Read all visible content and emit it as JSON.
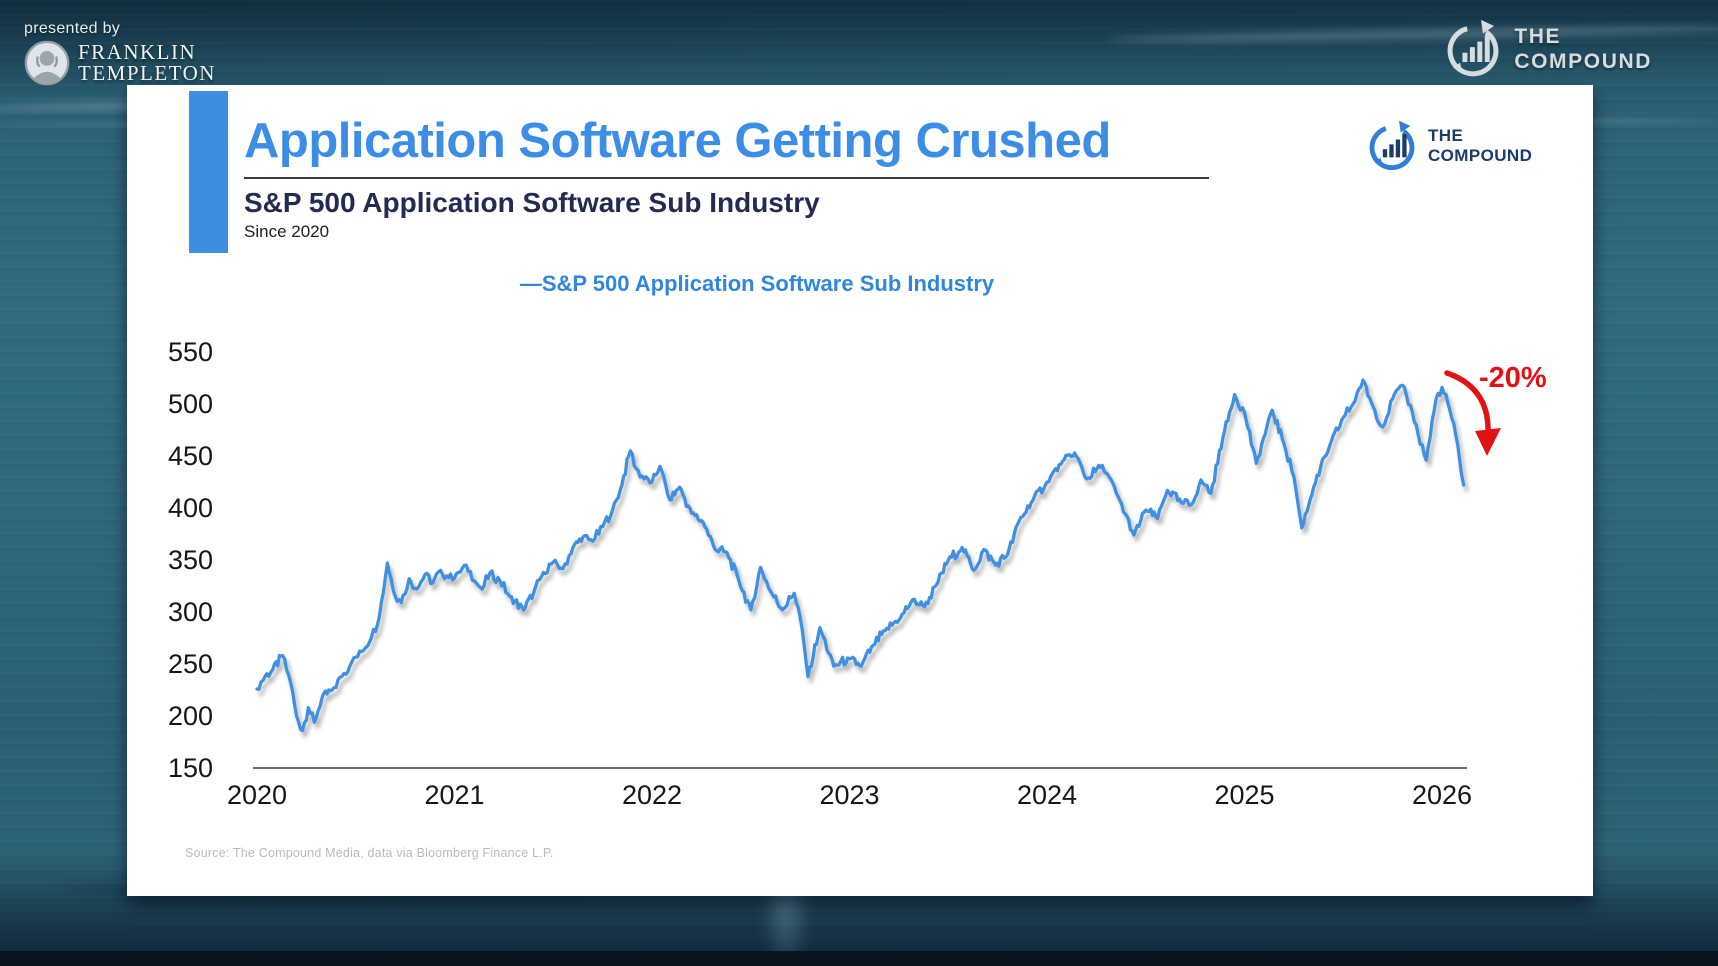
{
  "page": {
    "presented_by": "presented by",
    "franklin_line1": "FRANKLIN",
    "franklin_line2": "TEMPLETON",
    "compound_outer_line1": "THE",
    "compound_outer_line2": "COMPOUND"
  },
  "card": {
    "title": "Application Software Getting Crushed",
    "subtitle": "S&P 500 Application Software Sub Industry",
    "subnote": "Since 2020",
    "logo_line1": "THE",
    "logo_line2": "COMPOUND",
    "legend_marker": "—",
    "legend_label": "S&P 500 Application Software Sub Industry",
    "source": "Source: The Compound Media, data via Bloomberg Finance L.P.",
    "colors": {
      "accent_blue": "#3b8de5",
      "line_blue": "#3f90e2",
      "navy": "#232b52",
      "red": "#e31212",
      "axis_gray": "#6f6f6f",
      "tick_text": "#161616"
    }
  },
  "chart_data": {
    "type": "line",
    "title": "S&P 500 Application Software Sub Industry",
    "xlabel": "",
    "ylabel": "",
    "xlim": [
      2020,
      2026.15
    ],
    "ylim": [
      150,
      575
    ],
    "grid": false,
    "legend_position": "top-center",
    "xticks": [
      2020,
      2021,
      2022,
      2023,
      2024,
      2025,
      2026
    ],
    "yticks": [
      550,
      500,
      450,
      400,
      350,
      300,
      250,
      200,
      150
    ],
    "annotation": {
      "text": "-20%",
      "color": "#e31212"
    },
    "series": [
      {
        "name": "S&P 500 Application Software Sub Industry",
        "color": "#3f90e2",
        "x": [
          2020.0,
          2020.04,
          2020.08,
          2020.13,
          2020.17,
          2020.2,
          2020.23,
          2020.26,
          2020.29,
          2020.33,
          2020.38,
          2020.43,
          2020.48,
          2020.53,
          2020.58,
          2020.62,
          2020.66,
          2020.7,
          2020.73,
          2020.77,
          2020.81,
          2020.85,
          2020.89,
          2020.93,
          2020.97,
          2021.02,
          2021.06,
          2021.1,
          2021.14,
          2021.18,
          2021.23,
          2021.28,
          2021.35,
          2021.4,
          2021.45,
          2021.5,
          2021.55,
          2021.6,
          2021.65,
          2021.7,
          2021.75,
          2021.8,
          2021.84,
          2021.89,
          2021.92,
          2021.96,
          2022.0,
          2022.04,
          2022.09,
          2022.14,
          2022.2,
          2022.26,
          2022.32,
          2022.38,
          2022.44,
          2022.5,
          2022.55,
          2022.6,
          2022.66,
          2022.72,
          2022.75,
          2022.79,
          2022.85,
          2022.92,
          2023.0,
          2023.06,
          2023.12,
          2023.18,
          2023.26,
          2023.32,
          2023.38,
          2023.44,
          2023.5,
          2023.57,
          2023.63,
          2023.68,
          2023.74,
          2023.8,
          2023.86,
          2023.92,
          2024.0,
          2024.07,
          2024.14,
          2024.2,
          2024.28,
          2024.36,
          2024.44,
          2024.5,
          2024.56,
          2024.61,
          2024.68,
          2024.73,
          2024.78,
          2024.83,
          2024.89,
          2024.95,
          2025.0,
          2025.06,
          2025.14,
          2025.2,
          2025.25,
          2025.29,
          2025.35,
          2025.43,
          2025.5,
          2025.55,
          2025.6,
          2025.65,
          2025.7,
          2025.75,
          2025.8,
          2025.85,
          2025.88,
          2025.92,
          2025.97,
          2026.0,
          2026.04,
          2026.07,
          2026.09,
          2026.11
        ],
        "y": [
          226,
          238,
          245,
          258,
          232,
          200,
          186,
          208,
          194,
          218,
          225,
          238,
          252,
          262,
          276,
          296,
          347,
          315,
          309,
          332,
          322,
          336,
          328,
          340,
          333,
          338,
          345,
          330,
          322,
          338,
          330,
          315,
          302,
          318,
          338,
          348,
          342,
          362,
          372,
          368,
          382,
          398,
          418,
          455,
          438,
          428,
          425,
          440,
          408,
          420,
          395,
          386,
          360,
          357,
          330,
          302,
          343,
          320,
          302,
          318,
          295,
          238,
          285,
          248,
          255,
          248,
          268,
          282,
          295,
          312,
          305,
          326,
          350,
          362,
          340,
          360,
          345,
          355,
          388,
          405,
          425,
          442,
          453,
          428,
          441,
          411,
          374,
          398,
          390,
          417,
          405,
          403,
          427,
          414,
          467,
          509,
          492,
          443,
          494,
          462,
          430,
          381,
          420,
          459,
          487,
          500,
          523,
          498,
          478,
          505,
          518,
          492,
          470,
          446,
          505,
          516,
          494,
          470,
          445,
          422
        ]
      }
    ]
  }
}
